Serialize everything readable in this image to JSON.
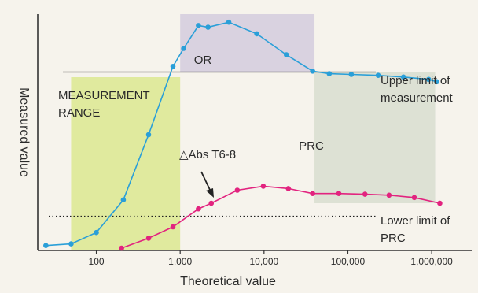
{
  "chart_data": {
    "type": "line",
    "xlabel": "Theoretical value",
    "ylabel": "Measured value",
    "x_scale": "log",
    "xlim": [
      20,
      3000000
    ],
    "ylim": [
      0,
      100
    ],
    "x_ticks": [
      {
        "value": 100,
        "label": "100"
      },
      {
        "value": 1000,
        "label": "1,000"
      },
      {
        "value": 10000,
        "label": "10,000"
      },
      {
        "value": 100000,
        "label": "100,000"
      },
      {
        "value": 1000000,
        "label": "1,000,000"
      }
    ],
    "series": [
      {
        "color": "#2a9fd8",
        "points": [
          [
            25,
            2.1
          ],
          [
            50,
            2.8
          ],
          [
            100,
            7.6
          ],
          [
            210,
            21.4
          ],
          [
            420,
            49.0
          ],
          [
            820,
            77.9
          ],
          [
            1100,
            85.5
          ],
          [
            1650,
            95.2
          ],
          [
            2150,
            94.5
          ],
          [
            3800,
            96.6
          ],
          [
            8200,
            91.7
          ],
          [
            18500,
            82.8
          ],
          [
            38000,
            75.9
          ],
          [
            60000,
            74.8
          ],
          [
            110000,
            74.5
          ],
          [
            230000,
            74.1
          ],
          [
            460000,
            73.4
          ],
          [
            920000,
            72.4
          ],
          [
            1150000,
            71.4
          ]
        ]
      },
      {
        "name": "△Abs T6-8",
        "color": "#e2237f",
        "points": [
          [
            200,
            1.0
          ],
          [
            420,
            5.2
          ],
          [
            820,
            10.0
          ],
          [
            1650,
            17.6
          ],
          [
            2350,
            20.0
          ],
          [
            4800,
            25.5
          ],
          [
            9800,
            27.2
          ],
          [
            19500,
            26.2
          ],
          [
            38000,
            24.1
          ],
          [
            78000,
            24.1
          ],
          [
            160000,
            23.8
          ],
          [
            310000,
            23.4
          ],
          [
            620000,
            22.4
          ],
          [
            1250000,
            20.0
          ]
        ]
      }
    ],
    "regions": [
      {
        "label": "MEASUREMENT RANGE",
        "x_range": [
          50,
          1000
        ],
        "color": "#e0ea9e"
      },
      {
        "label": "OR",
        "x_range": [
          1000,
          40000
        ],
        "color": "#d9d2e0"
      },
      {
        "label": "PRC",
        "x_range": [
          40000,
          1100000
        ],
        "color": "#dde1d4"
      }
    ],
    "reference_lines": [
      {
        "label": "Upper limit of measurement",
        "y": 75.5,
        "style": "solid"
      },
      {
        "label": "Lower limit of PRC",
        "y": 14.5,
        "style": "dotted"
      }
    ],
    "annotation": {
      "text": "△Abs T6-8",
      "x": 9000,
      "y": 27.5
    }
  }
}
